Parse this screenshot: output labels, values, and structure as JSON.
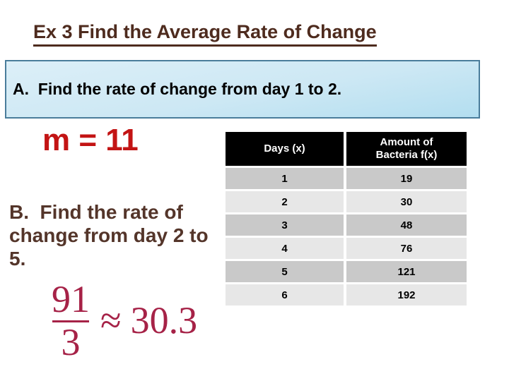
{
  "slide": {
    "title": "Ex 3 Find the Average Rate of Change",
    "question_a": "A.  Find the rate of change from day 1 to 2.",
    "answer_a": "m = 11",
    "question_b": "B.  Find the rate of change from day 2 to 5.",
    "equation": {
      "numerator": "91",
      "denominator": "3",
      "approx_symbol": "≈",
      "result": "30.3"
    }
  },
  "table": {
    "headers": [
      "Days (x)",
      "Amount of Bacteria f(x)"
    ],
    "rows": [
      [
        "1",
        "19"
      ],
      [
        "2",
        "30"
      ],
      [
        "3",
        "48"
      ],
      [
        "4",
        "76"
      ],
      [
        "5",
        "121"
      ],
      [
        "6",
        "192"
      ]
    ]
  },
  "colors": {
    "title_text": "#4E2B1E",
    "answer_red": "#C31414",
    "equation_crimson": "#A62247",
    "question_b_text": "#54352A",
    "box_border": "#4A7D9B",
    "box_gradient_top": "#DCEFF8",
    "box_gradient_bottom": "#B3DEF0",
    "table_header_bg": "#000000",
    "table_header_text": "#FFFFFF",
    "table_row_dark": "#C9C9C9",
    "table_row_light": "#E7E7E7"
  }
}
